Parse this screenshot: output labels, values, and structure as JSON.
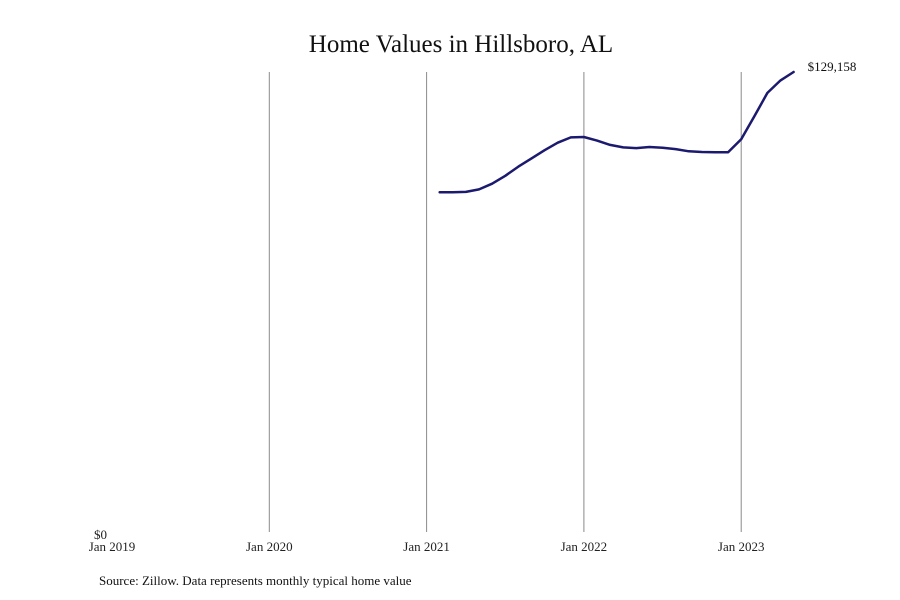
{
  "chart_data": {
    "type": "line",
    "title": "Home Values in Hillsboro, AL",
    "source": "Source: Zillow. Data represents monthly typical home value",
    "xlabel": "",
    "ylabel": "",
    "x_ticks": [
      "Jan 2019",
      "Jan 2020",
      "Jan 2021",
      "Jan 2022",
      "Jan 2023"
    ],
    "y_ticks": [
      "$0"
    ],
    "ylim": [
      0,
      129158
    ],
    "grid": "vertical lines at January of each year",
    "end_label": "$129,158",
    "series": [
      {
        "color": "#1c1a6e",
        "points": [
          {
            "x": "2021-02",
            "y": 95400
          },
          {
            "x": "2021-03",
            "y": 95400
          },
          {
            "x": "2021-04",
            "y": 95500
          },
          {
            "x": "2021-05",
            "y": 96200
          },
          {
            "x": "2021-06",
            "y": 97800
          },
          {
            "x": "2021-07",
            "y": 100000
          },
          {
            "x": "2021-08",
            "y": 102600
          },
          {
            "x": "2021-09",
            "y": 104900
          },
          {
            "x": "2021-10",
            "y": 107200
          },
          {
            "x": "2021-11",
            "y": 109300
          },
          {
            "x": "2021-12",
            "y": 110800
          },
          {
            "x": "2022-01",
            "y": 110900
          },
          {
            "x": "2022-02",
            "y": 109900
          },
          {
            "x": "2022-03",
            "y": 108700
          },
          {
            "x": "2022-04",
            "y": 108000
          },
          {
            "x": "2022-05",
            "y": 107800
          },
          {
            "x": "2022-06",
            "y": 108100
          },
          {
            "x": "2022-07",
            "y": 107900
          },
          {
            "x": "2022-08",
            "y": 107500
          },
          {
            "x": "2022-09",
            "y": 106900
          },
          {
            "x": "2022-10",
            "y": 106700
          },
          {
            "x": "2022-11",
            "y": 106600
          },
          {
            "x": "2022-12",
            "y": 106600
          },
          {
            "x": "2023-01",
            "y": 110300
          },
          {
            "x": "2023-02",
            "y": 116700
          },
          {
            "x": "2023-03",
            "y": 123300
          },
          {
            "x": "2023-04",
            "y": 126800
          },
          {
            "x": "2023-05",
            "y": 129158
          }
        ]
      }
    ]
  }
}
